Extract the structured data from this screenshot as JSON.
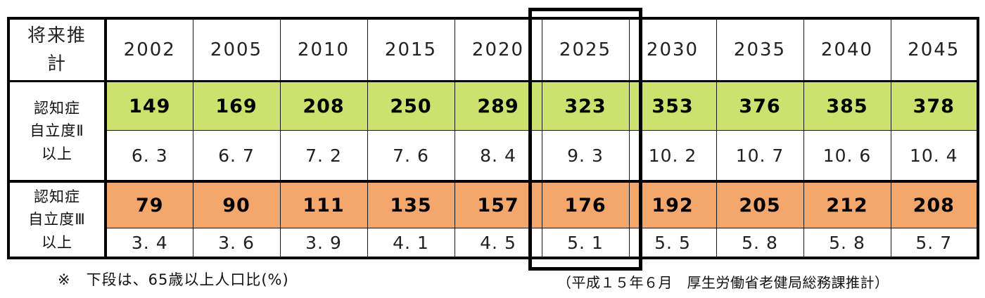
{
  "chart_data": {
    "type": "table",
    "corner_label_lines": [
      "将来推",
      "計"
    ],
    "years": [
      "2002",
      "2005",
      "2010",
      "2015",
      "2020",
      "2025",
      "2030",
      "2035",
      "2040",
      "2045"
    ],
    "groups": [
      {
        "label_lines": [
          "認知症",
          "自立度Ⅱ",
          "以上"
        ],
        "counts": [
          149,
          169,
          208,
          250,
          289,
          323,
          353,
          376,
          385,
          378
        ],
        "percents": [
          6.3,
          6.7,
          7.2,
          7.6,
          8.4,
          9.3,
          10.2,
          10.7,
          10.6,
          10.4
        ],
        "count_row_bg": "#cbe26f"
      },
      {
        "label_lines": [
          "認知症",
          "自立度Ⅲ",
          "以上"
        ],
        "counts": [
          79,
          90,
          111,
          135,
          157,
          176,
          192,
          205,
          212,
          208
        ],
        "percents": [
          3.4,
          3.6,
          3.9,
          4.1,
          4.5,
          5.1,
          5.5,
          5.8,
          5.8,
          5.7
        ],
        "count_row_bg": "#f4a76c"
      }
    ],
    "highlight": {
      "year": "2025",
      "border_color": "#000000"
    },
    "footnote_left": "※　下段は、65歳以上人口比(%)",
    "footnote_right": "（平成１５年６月　厚生労働省老健局総務課推計）",
    "layout_hints": {
      "grid": "all-borders",
      "legend": "none",
      "unit_note": "lower row = % of population 65+"
    }
  }
}
